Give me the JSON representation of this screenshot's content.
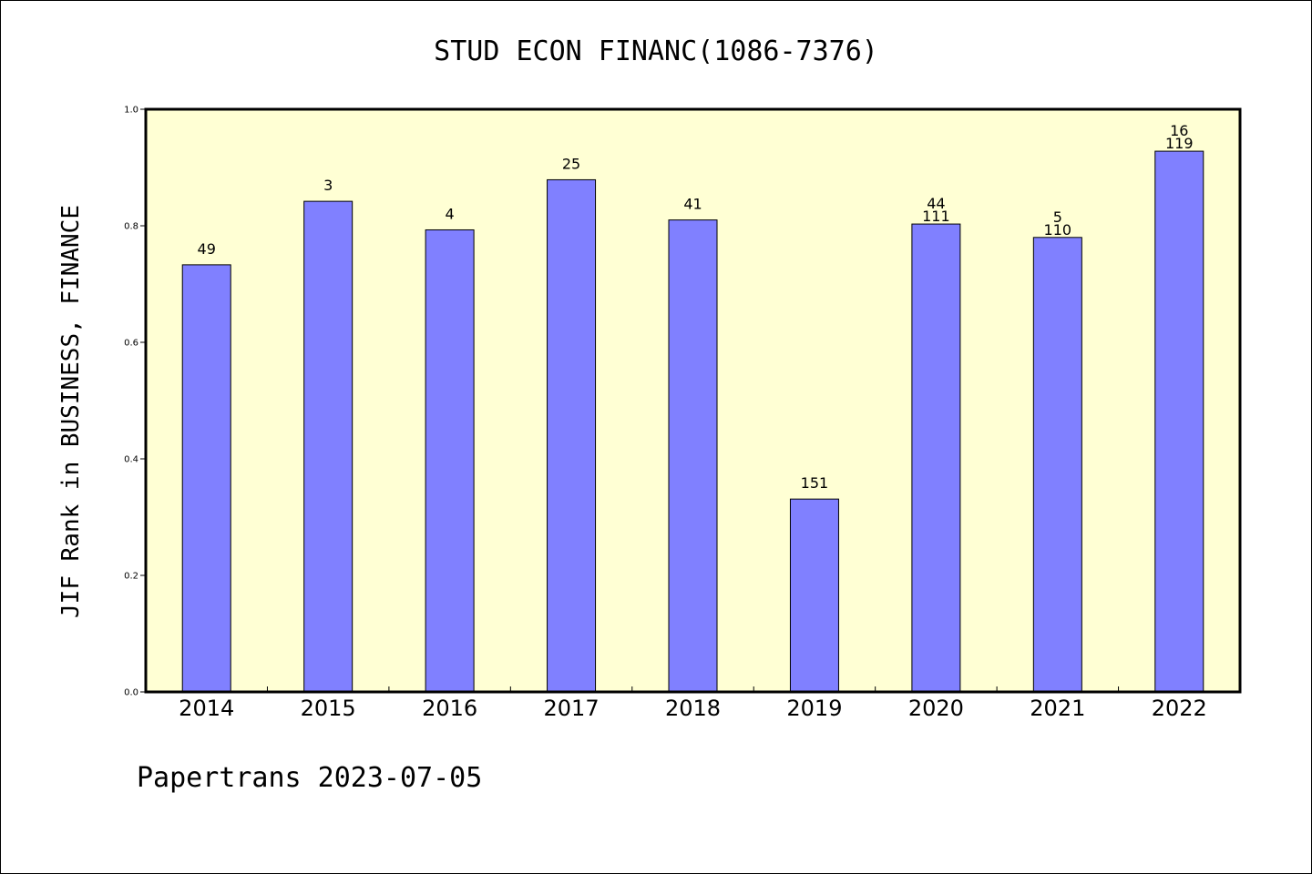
{
  "chart_data": {
    "type": "bar",
    "title": "STUD ECON FINANC(1086-7376)",
    "xlabel": "",
    "ylabel": "JIF Rank in BUSINESS, FINANCE",
    "ylim": [
      0,
      1.0
    ],
    "yticks": [
      "0.0",
      "0.2",
      "0.4",
      "0.6",
      "0.8",
      "1.0"
    ],
    "categories": [
      "2014",
      "2015",
      "2016",
      "2017",
      "2018",
      "2019",
      "2020",
      "2021",
      "2022"
    ],
    "values": [
      0.733,
      0.842,
      0.793,
      0.879,
      0.81,
      0.331,
      0.803,
      0.78,
      0.928
    ],
    "annotations": [
      [
        "49"
      ],
      [
        "3"
      ],
      [
        "4"
      ],
      [
        "25"
      ],
      [
        "41"
      ],
      [
        "151"
      ],
      [
        "44",
        "111"
      ],
      [
        "5",
        "110"
      ],
      [
        "16",
        "119"
      ]
    ],
    "colors": {
      "bar": "#8080ff",
      "plot_background": "#ffffd4",
      "bar_edge": "#000000"
    },
    "grid": false,
    "legend": "none"
  },
  "footer": {
    "text": "Papertrans 2023-07-05"
  }
}
